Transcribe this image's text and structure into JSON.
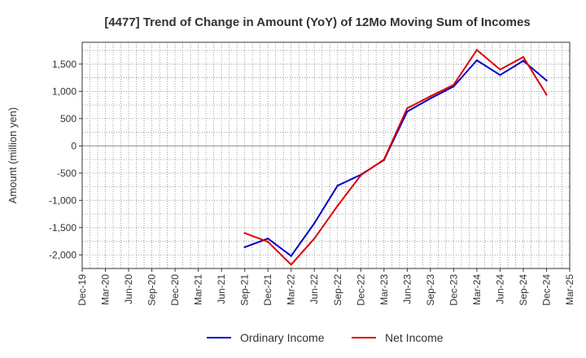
{
  "chart_data": {
    "type": "line",
    "title": "[4477]  Trend of Change in Amount (YoY) of 12Mo Moving Sum of Incomes",
    "xlabel": "",
    "ylabel": "Amount (million yen)",
    "ylim": [
      -2250,
      1900
    ],
    "yticks": [
      -2000,
      -1500,
      -1000,
      -500,
      0,
      500,
      1000,
      1500
    ],
    "ytick_labels": [
      "-2,000",
      "-1,500",
      "-1,000",
      "-500",
      "0",
      "500",
      "1,000",
      "1,500"
    ],
    "categories": [
      "Dec-19",
      "Mar-20",
      "Jun-20",
      "Sep-20",
      "Dec-20",
      "Mar-21",
      "Jun-21",
      "Sep-21",
      "Dec-21",
      "Mar-22",
      "Jun-22",
      "Sep-22",
      "Dec-22",
      "Mar-23",
      "Jun-23",
      "Sep-23",
      "Dec-23",
      "Mar-24",
      "Jun-24",
      "Sep-24",
      "Dec-24",
      "Mar-25"
    ],
    "grid": true,
    "legend_position": "bottom-center",
    "series": [
      {
        "name": "Ordinary Income",
        "color": "#0000cc",
        "values": [
          null,
          null,
          null,
          null,
          null,
          null,
          null,
          -1860,
          -1700,
          -2020,
          -1420,
          -730,
          -530,
          -260,
          630,
          870,
          1090,
          1570,
          1300,
          1560,
          1200,
          null
        ]
      },
      {
        "name": "Net Income",
        "color": "#dd0000",
        "values": [
          null,
          null,
          null,
          null,
          null,
          null,
          null,
          -1600,
          -1760,
          -2180,
          -1700,
          -1100,
          -540,
          -250,
          690,
          910,
          1120,
          1760,
          1400,
          1630,
          940,
          null
        ]
      }
    ]
  }
}
